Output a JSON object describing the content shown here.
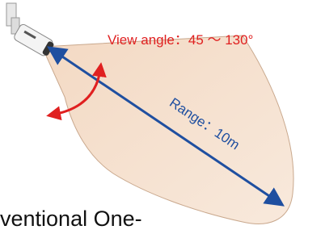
{
  "labels": {
    "view_angle": "View angle：45 ～ 130°",
    "range": "Range：10m",
    "caption": "ventional One-"
  }
}
